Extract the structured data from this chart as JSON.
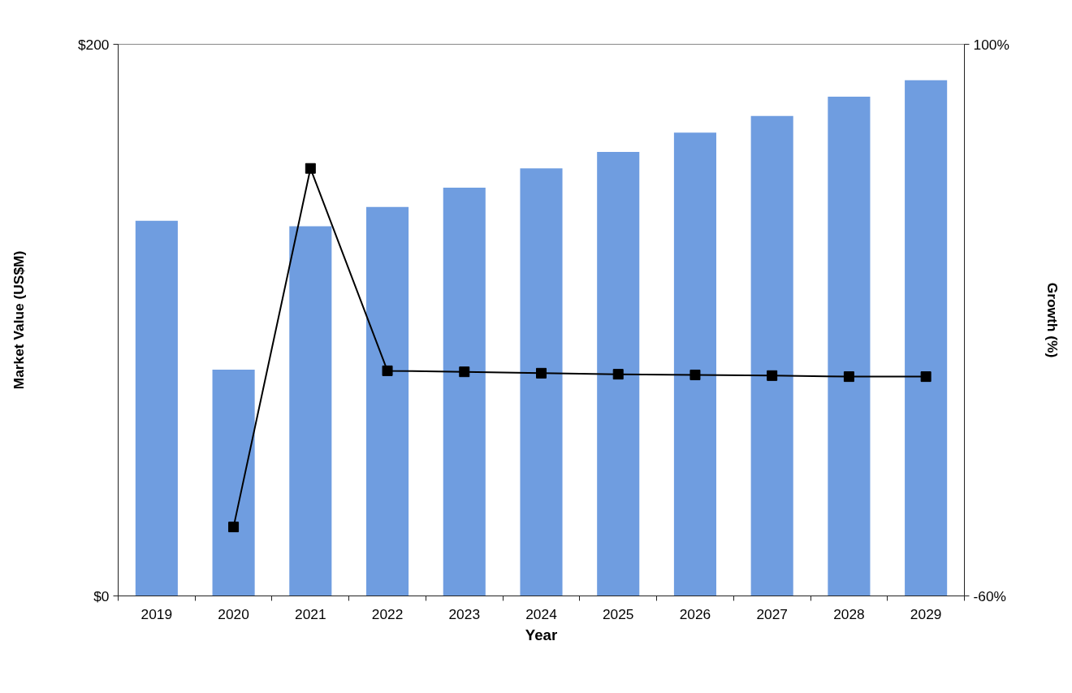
{
  "chart_data": {
    "type": "bar",
    "xlabel": "Year",
    "ylabel": "Market Value (US$M)",
    "y2label": "Growth (%)",
    "categories": [
      "2019",
      "2020",
      "2021",
      "2022",
      "2023",
      "2024",
      "2025",
      "2026",
      "2027",
      "2028",
      "2029"
    ],
    "ylim": [
      0,
      200
    ],
    "yticks": [
      {
        "value": 0,
        "label": "$0"
      },
      {
        "value": 200,
        "label": "$200"
      }
    ],
    "y2lim": [
      -60,
      100
    ],
    "y2ticks": [
      {
        "value": -60,
        "label": "-60%"
      },
      {
        "value": 100,
        "label": "100%"
      }
    ],
    "series": [
      {
        "color": "#6f9de0",
        "values": [
          136,
          82,
          134,
          141,
          148,
          155,
          161,
          168,
          174,
          181,
          187
        ]
      },
      {
        "type": "line",
        "axis": "y2",
        "color": "#000000",
        "marker": "square",
        "line_style": "solid",
        "values": [
          null,
          -40,
          64,
          5.3,
          5.0,
          4.6,
          4.3,
          4.1,
          3.9,
          3.6,
          3.6
        ]
      }
    ]
  }
}
